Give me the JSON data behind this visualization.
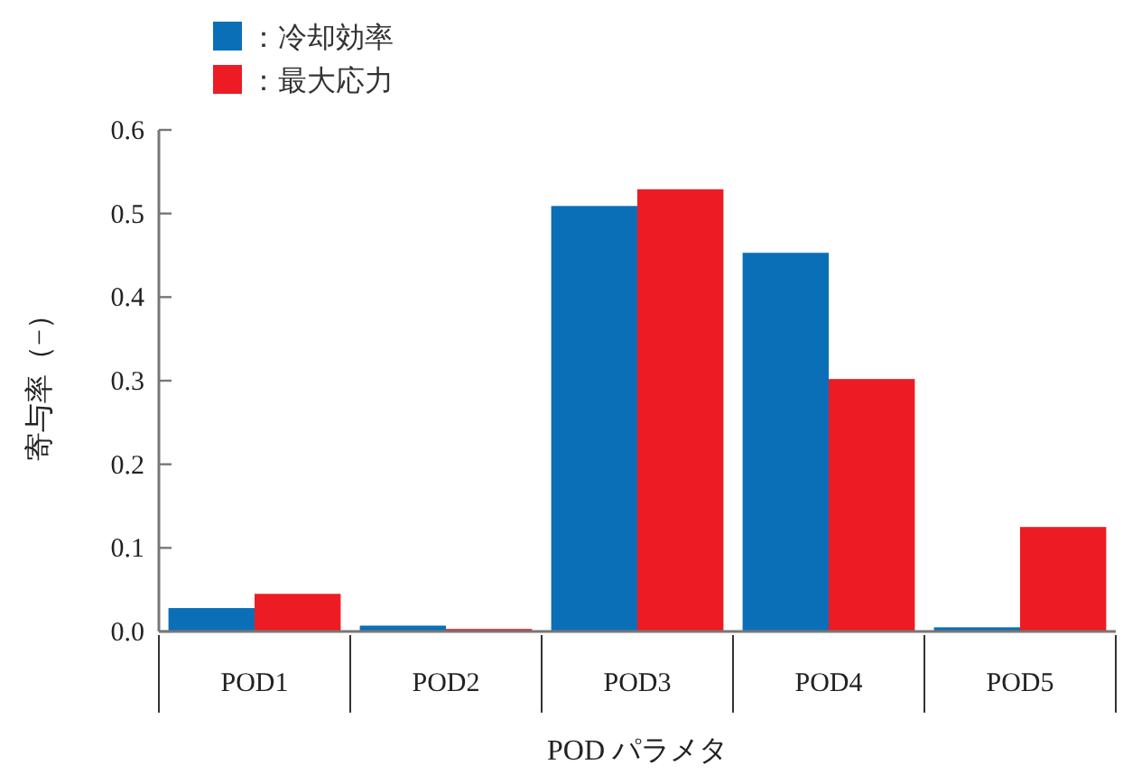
{
  "chart_data": {
    "type": "bar",
    "xlabel": "POD パラメタ",
    "ylabel": "寄与率（−）",
    "categories": [
      "POD1",
      "POD2",
      "POD3",
      "POD4",
      "POD5"
    ],
    "series": [
      {
        "name": "：冷却効率",
        "color": "#0b6fb8",
        "values": [
          0.028,
          0.007,
          0.509,
          0.453,
          0.005
        ]
      },
      {
        "name": "：最大応力",
        "color": "#ed1c24",
        "values": [
          0.045,
          0.003,
          0.529,
          0.302,
          0.125
        ]
      }
    ],
    "ylim": [
      0,
      0.6
    ],
    "yticks": [
      {
        "value": 0,
        "label": "0.0"
      },
      0.1,
      0.2,
      0.3,
      0.4,
      0.5,
      0.6
    ],
    "grid": false,
    "legend": "top left"
  }
}
